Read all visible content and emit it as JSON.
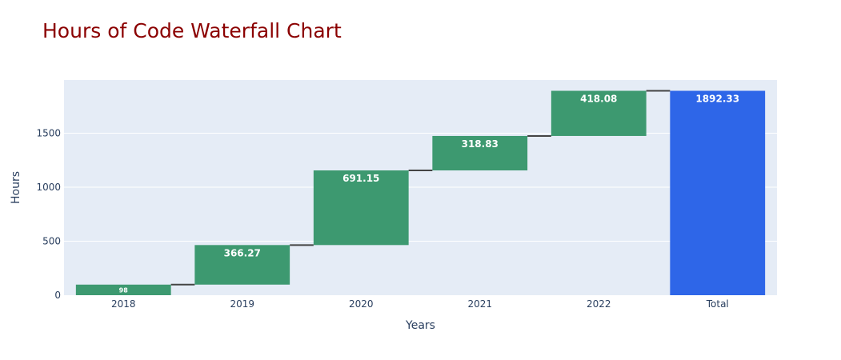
{
  "chart_data": {
    "type": "waterfall",
    "title": "Hours of Code Waterfall Chart",
    "xlabel": "Years",
    "ylabel": "Hours",
    "categories": [
      "2018",
      "2019",
      "2020",
      "2021",
      "2022",
      "Total"
    ],
    "measures": [
      "relative",
      "relative",
      "relative",
      "relative",
      "relative",
      "total"
    ],
    "values": [
      98,
      366.27,
      691.15,
      318.83,
      418.08,
      1892.33
    ],
    "labels": [
      "98",
      "366.27",
      "691.15",
      "318.83",
      "418.08",
      "1892.33"
    ],
    "yticks": [
      0,
      500,
      1000,
      1500
    ],
    "ytick_labels": [
      "0",
      "500",
      "1000",
      "1500"
    ],
    "ylim": [
      0,
      1992.33
    ],
    "grid": true,
    "colors": {
      "increase": "#3d9970",
      "total": "#2e66e8",
      "connector": "#444444",
      "plot_bg": "#e5ecf6",
      "grid": "#ffffff",
      "title": "#8b0000",
      "text": "#2a3f5f"
    }
  }
}
